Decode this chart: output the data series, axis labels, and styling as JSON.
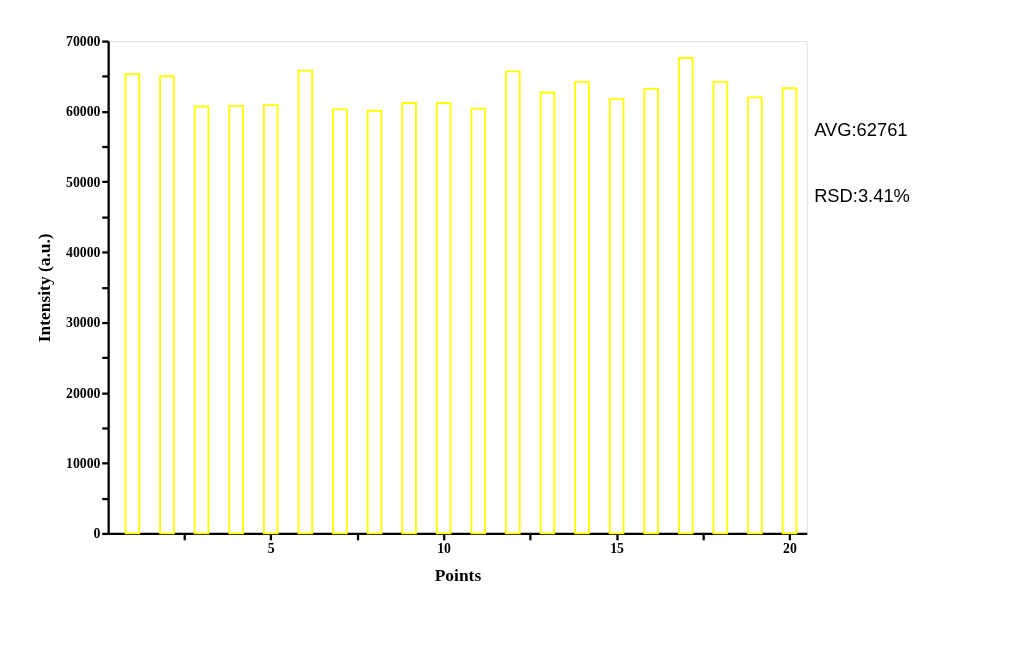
{
  "chart_data": {
    "type": "bar",
    "xlabel": "Points",
    "ylabel": "Intensity (a.u.)",
    "x": [
      1,
      2,
      3,
      4,
      5,
      6,
      7,
      8,
      9,
      10,
      11,
      12,
      13,
      14,
      15,
      16,
      17,
      18,
      19,
      20
    ],
    "values": [
      65300,
      65000,
      60700,
      60800,
      60900,
      65800,
      60300,
      60100,
      61200,
      61200,
      60400,
      65700,
      62700,
      64200,
      61800,
      63200,
      67600,
      64200,
      62000,
      63300
    ],
    "color": "#ffff00",
    "xlim": [
      0.3,
      20.5
    ],
    "xticks": [
      {
        "value": 2.5,
        "label": null
      },
      5,
      {
        "value": 7.5,
        "label": null
      },
      10,
      {
        "value": 12.5,
        "label": null
      },
      15,
      {
        "value": 17.5,
        "label": null
      },
      20
    ],
    "ylim": [
      0,
      70000
    ],
    "yticks": [
      0,
      {
        "value": 5000,
        "label": null
      },
      10000,
      {
        "value": 15000,
        "label": null
      },
      20000,
      {
        "value": 25000,
        "label": null
      },
      30000,
      {
        "value": 35000,
        "label": null
      },
      40000,
      {
        "value": 45000,
        "label": null
      },
      50000,
      {
        "value": 55000,
        "label": null
      },
      60000,
      {
        "value": 65000,
        "label": null
      },
      70000
    ],
    "annotations": [
      "AVG:62761",
      "RSD:3.41%"
    ],
    "grid": false
  }
}
